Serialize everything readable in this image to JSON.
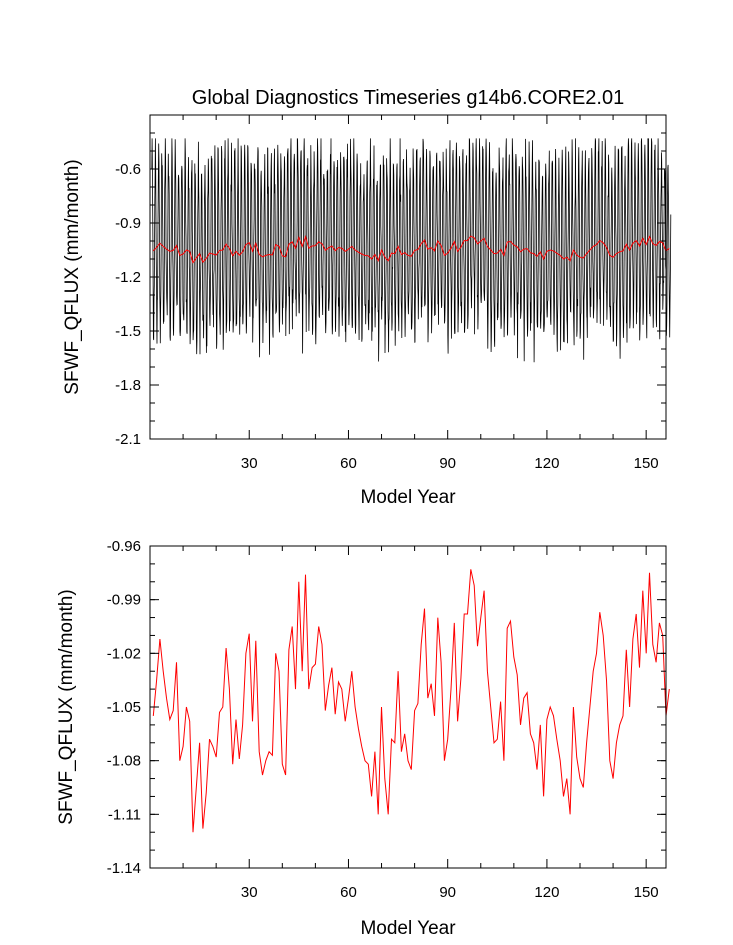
{
  "chart_data": [
    {
      "type": "line",
      "title": "Global Diagnostics Timeseries g14b6.CORE2.01",
      "xlabel": "Model Year",
      "ylabel": "SFWF_QFLUX (mm/month)",
      "xlim": [
        0,
        156
      ],
      "ylim": [
        -2.1,
        -0.3
      ],
      "xticks": [
        30,
        60,
        90,
        120,
        150
      ],
      "xtick_labels": [
        "30",
        "60",
        "90",
        "120",
        "150"
      ],
      "yticks": [
        -2.1,
        -1.8,
        -1.5,
        -1.2,
        -0.9,
        -0.6
      ],
      "ytick_labels": [
        "-2.1",
        "-1.8",
        "-1.5",
        "-1.2",
        "-0.9",
        "-0.6"
      ],
      "grid": false,
      "series": [
        {
          "color": "#000000",
          "resolution": "monthly",
          "range": [
            -1.8,
            -0.43
          ],
          "note_values": "monthly samples oscillating seasonally around the annual mean"
        },
        {
          "color": "#ff0000",
          "resolution": "annual",
          "ref": "chart_data.1.series.0.values"
        }
      ]
    },
    {
      "type": "line",
      "title": "",
      "xlabel": "Model Year",
      "ylabel": "SFWF_QFLUX (mm/month)",
      "xlim": [
        0,
        156
      ],
      "ylim": [
        -1.14,
        -0.96
      ],
      "xticks": [
        30,
        60,
        90,
        120,
        150
      ],
      "xtick_labels": [
        "30",
        "60",
        "90",
        "120",
        "150"
      ],
      "yticks": [
        -1.14,
        -1.11,
        -1.08,
        -1.05,
        -1.02,
        -0.99,
        -0.96
      ],
      "ytick_labels": [
        "-1.14",
        "-1.11",
        "-1.08",
        "-1.05",
        "-1.02",
        "-0.99",
        "-0.96"
      ],
      "grid": false,
      "series": [
        {
          "color": "#ff0000",
          "x_start": 1,
          "x_step": 1,
          "values": [
            -1.055,
            -1.035,
            -1.012,
            -1.03,
            -1.045,
            -1.057,
            -1.052,
            -1.025,
            -1.08,
            -1.072,
            -1.05,
            -1.058,
            -1.12,
            -1.095,
            -1.07,
            -1.118,
            -1.098,
            -1.068,
            -1.072,
            -1.078,
            -1.053,
            -1.05,
            -1.017,
            -1.04,
            -1.082,
            -1.057,
            -1.079,
            -1.06,
            -1.02,
            -1.009,
            -1.058,
            -1.013,
            -1.075,
            -1.088,
            -1.08,
            -1.075,
            -1.077,
            -1.02,
            -1.03,
            -1.082,
            -1.088,
            -1.018,
            -1.005,
            -1.04,
            -0.98,
            -1.03,
            -0.976,
            -1.04,
            -1.028,
            -1.026,
            -1.005,
            -1.015,
            -1.052,
            -1.038,
            -1.028,
            -1.054,
            -1.036,
            -1.04,
            -1.058,
            -1.045,
            -1.03,
            -1.05,
            -1.062,
            -1.072,
            -1.08,
            -1.082,
            -1.1,
            -1.075,
            -1.11,
            -1.05,
            -1.09,
            -1.11,
            -1.068,
            -1.07,
            -1.03,
            -1.075,
            -1.065,
            -1.08,
            -1.085,
            -1.052,
            -1.048,
            -1.015,
            -0.995,
            -1.045,
            -1.037,
            -1.055,
            -1.0,
            -1.025,
            -1.08,
            -1.068,
            -1.04,
            -1.003,
            -1.058,
            -1.034,
            -0.998,
            -0.998,
            -0.973,
            -0.982,
            -1.016,
            -1.0,
            -0.985,
            -1.03,
            -1.05,
            -1.07,
            -1.068,
            -1.047,
            -1.08,
            -1.006,
            -1.002,
            -1.022,
            -1.032,
            -1.06,
            -1.045,
            -1.042,
            -1.065,
            -1.07,
            -1.085,
            -1.06,
            -1.1,
            -1.057,
            -1.05,
            -1.055,
            -1.068,
            -1.08,
            -1.1,
            -1.09,
            -1.11,
            -1.05,
            -1.078,
            -1.09,
            -1.095,
            -1.07,
            -1.05,
            -1.03,
            -1.02,
            -0.997,
            -1.01,
            -1.035,
            -1.08,
            -1.09,
            -1.07,
            -1.06,
            -1.055,
            -1.018,
            -1.05,
            -1.012,
            -0.998,
            -1.028,
            -0.985,
            -1.02,
            -0.975,
            -1.015,
            -1.025,
            -1.003,
            -1.01,
            -1.055,
            -1.04
          ]
        }
      ]
    }
  ]
}
